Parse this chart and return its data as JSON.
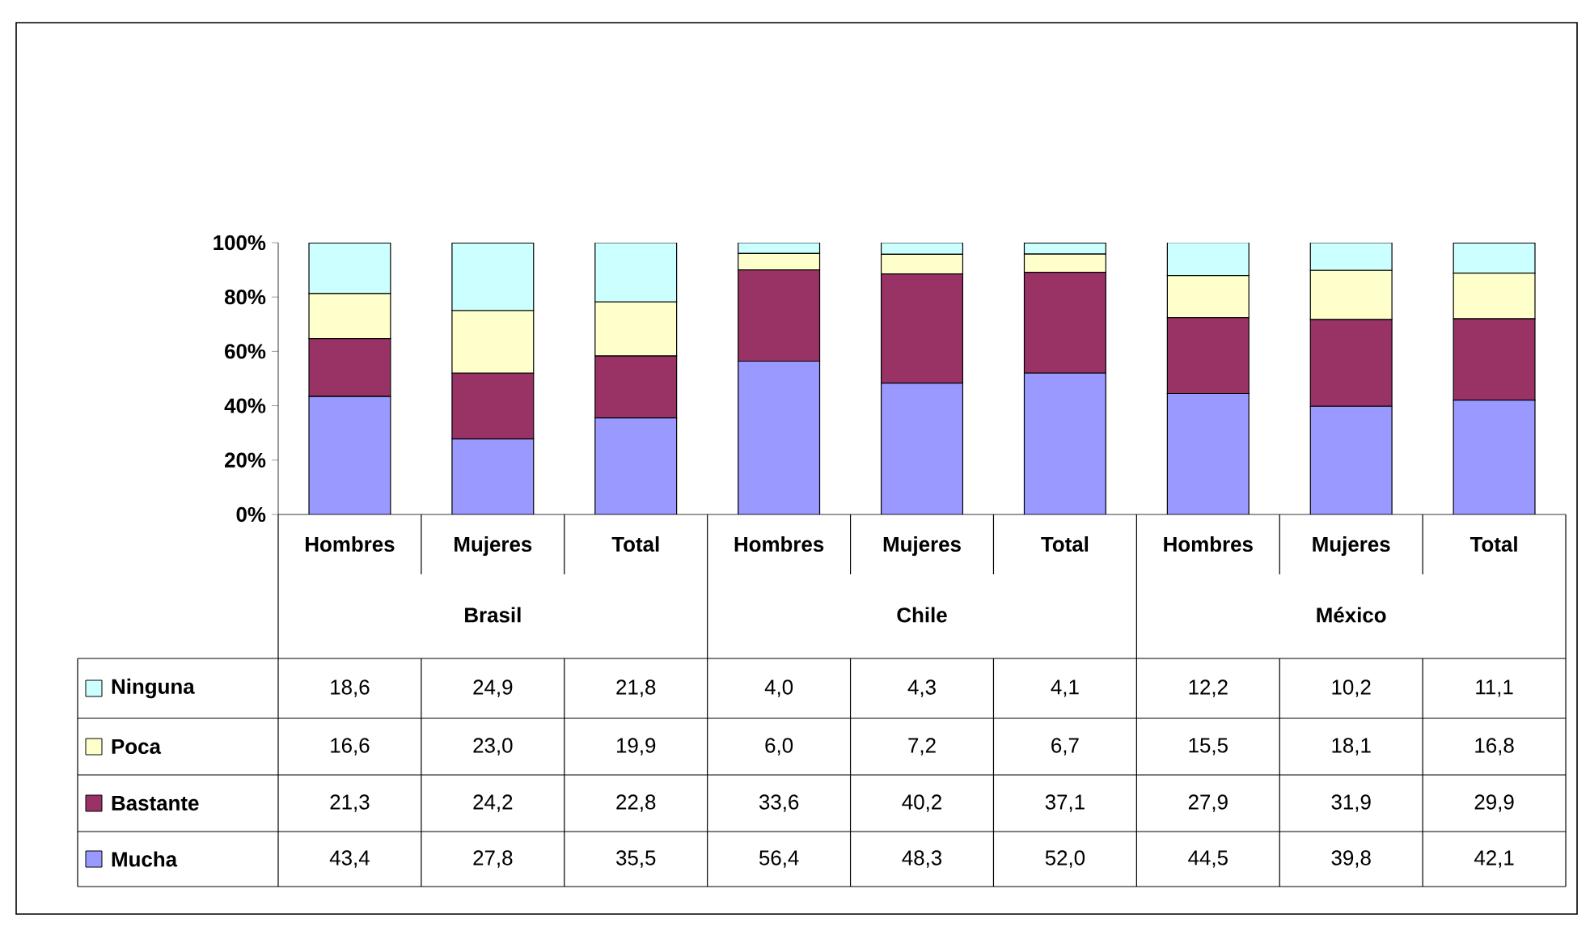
{
  "chart_data": {
    "type": "bar",
    "stacked": true,
    "categories": [
      "Hombres",
      "Mujeres",
      "Total",
      "Hombres",
      "Mujeres",
      "Total",
      "Hombres",
      "Mujeres",
      "Total"
    ],
    "annotations": [
      "Brasil",
      "Chile",
      "México"
    ],
    "series": [
      {
        "name": "Mucha",
        "color": "#9999ff",
        "values": [
          43.4,
          27.8,
          35.5,
          56.4,
          48.3,
          52.0,
          44.5,
          39.8,
          42.1
        ],
        "value_labels": [
          "43,4",
          "27,8",
          "35,5",
          "56,4",
          "48,3",
          "52,0",
          "44,5",
          "39,8",
          "42,1"
        ]
      },
      {
        "name": "Bastante",
        "color": "#993366",
        "values": [
          21.3,
          24.2,
          22.8,
          33.6,
          40.2,
          37.1,
          27.9,
          31.9,
          29.9
        ],
        "value_labels": [
          "21,3",
          "24,2",
          "22,8",
          "33,6",
          "40,2",
          "37,1",
          "27,9",
          "31,9",
          "29,9"
        ]
      },
      {
        "name": "Poca",
        "color": "#ffffcc",
        "values": [
          16.6,
          23.0,
          19.9,
          6.0,
          7.2,
          6.7,
          15.5,
          18.1,
          16.8
        ],
        "value_labels": [
          "16,6",
          "23,0",
          "19,9",
          "6,0",
          "7,2",
          "6,7",
          "15,5",
          "18,1",
          "16,8"
        ]
      },
      {
        "name": "Ninguna",
        "color": "#ccffff",
        "values": [
          18.6,
          24.9,
          21.8,
          4.0,
          4.3,
          4.1,
          12.2,
          10.2,
          11.1
        ],
        "value_labels": [
          "18,6",
          "24,9",
          "21,8",
          "4,0",
          "4,3",
          "4,1",
          "12,2",
          "10,2",
          "11,1"
        ]
      }
    ],
    "ylim": [
      0,
      100
    ],
    "yticks": [
      {
        "value": 0,
        "label": "0%"
      },
      {
        "value": 20,
        "label": "20%"
      },
      {
        "value": 40,
        "label": "40%"
      },
      {
        "value": 60,
        "label": "60%"
      },
      {
        "value": 80,
        "label": "80%"
      },
      {
        "value": 100,
        "label": "100%"
      }
    ],
    "legend": "left",
    "grid": false
  }
}
